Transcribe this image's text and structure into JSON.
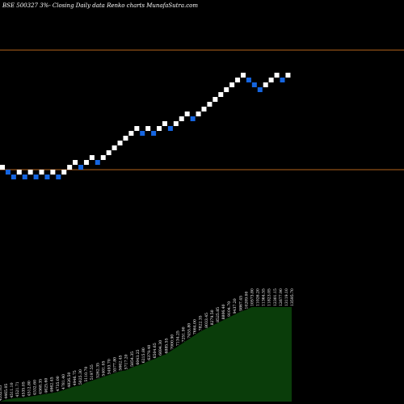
{
  "chart_data": {
    "type": "renko",
    "title": "BSE 500327 3%-  Closing Daily data  Renko  charts MunafaSutra.com",
    "colors": {
      "background": "#000000",
      "up_brick": "#ffffff",
      "down_brick": "#1565e0",
      "reference_line": "#b5651d",
      "volume_fill": "#0a3d0a"
    },
    "reference_levels": [
      "upper",
      "lower"
    ],
    "bricks": [
      {
        "col": 0,
        "step": 0,
        "dir": "up"
      },
      {
        "col": 1,
        "step": -1,
        "dir": "down"
      },
      {
        "col": 2,
        "step": -2,
        "dir": "down"
      },
      {
        "col": 3,
        "step": -1,
        "dir": "up"
      },
      {
        "col": 4,
        "step": -2,
        "dir": "down"
      },
      {
        "col": 5,
        "step": -1,
        "dir": "up"
      },
      {
        "col": 6,
        "step": -2,
        "dir": "down"
      },
      {
        "col": 7,
        "step": -1,
        "dir": "up"
      },
      {
        "col": 8,
        "step": -2,
        "dir": "down"
      },
      {
        "col": 9,
        "step": -1,
        "dir": "up"
      },
      {
        "col": 10,
        "step": -2,
        "dir": "down"
      },
      {
        "col": 11,
        "step": -1,
        "dir": "up"
      },
      {
        "col": 12,
        "step": 0,
        "dir": "up"
      },
      {
        "col": 13,
        "step": 1,
        "dir": "up"
      },
      {
        "col": 14,
        "step": 0,
        "dir": "down"
      },
      {
        "col": 15,
        "step": 1,
        "dir": "up"
      },
      {
        "col": 16,
        "step": 2,
        "dir": "up"
      },
      {
        "col": 17,
        "step": 1,
        "dir": "down"
      },
      {
        "col": 18,
        "step": 2,
        "dir": "up"
      },
      {
        "col": 19,
        "step": 3,
        "dir": "up"
      },
      {
        "col": 20,
        "step": 4,
        "dir": "up"
      },
      {
        "col": 21,
        "step": 5,
        "dir": "up"
      },
      {
        "col": 22,
        "step": 6,
        "dir": "up"
      },
      {
        "col": 23,
        "step": 7,
        "dir": "up"
      },
      {
        "col": 24,
        "step": 8,
        "dir": "up"
      },
      {
        "col": 25,
        "step": 7,
        "dir": "down"
      },
      {
        "col": 26,
        "step": 8,
        "dir": "up"
      },
      {
        "col": 27,
        "step": 7,
        "dir": "down"
      },
      {
        "col": 28,
        "step": 8,
        "dir": "up"
      },
      {
        "col": 29,
        "step": 9,
        "dir": "up"
      },
      {
        "col": 30,
        "step": 8,
        "dir": "down"
      },
      {
        "col": 31,
        "step": 9,
        "dir": "up"
      },
      {
        "col": 32,
        "step": 10,
        "dir": "up"
      },
      {
        "col": 33,
        "step": 11,
        "dir": "up"
      },
      {
        "col": 34,
        "step": 10,
        "dir": "down"
      },
      {
        "col": 35,
        "step": 11,
        "dir": "up"
      },
      {
        "col": 36,
        "step": 12,
        "dir": "up"
      },
      {
        "col": 37,
        "step": 13,
        "dir": "up"
      },
      {
        "col": 38,
        "step": 14,
        "dir": "up"
      },
      {
        "col": 39,
        "step": 15,
        "dir": "up"
      },
      {
        "col": 40,
        "step": 16,
        "dir": "up"
      },
      {
        "col": 41,
        "step": 17,
        "dir": "up"
      },
      {
        "col": 42,
        "step": 18,
        "dir": "up"
      },
      {
        "col": 43,
        "step": 19,
        "dir": "up"
      },
      {
        "col": 44,
        "step": 18,
        "dir": "down"
      },
      {
        "col": 45,
        "step": 17,
        "dir": "down"
      },
      {
        "col": 46,
        "step": 16,
        "dir": "down"
      },
      {
        "col": 47,
        "step": 17,
        "dir": "up"
      },
      {
        "col": 48,
        "step": 18,
        "dir": "up"
      },
      {
        "col": 49,
        "step": 19,
        "dir": "up"
      },
      {
        "col": 50,
        "step": 18,
        "dir": "down"
      },
      {
        "col": 51,
        "step": 19,
        "dir": "up"
      }
    ],
    "volume_levels": [
      0.0,
      0.02,
      0.03,
      0.04,
      0.04,
      0.05,
      0.06,
      0.07,
      0.08,
      0.09,
      0.1,
      0.12,
      0.14,
      0.16,
      0.17,
      0.2,
      0.22,
      0.24,
      0.26,
      0.28,
      0.3,
      0.32,
      0.33,
      0.36,
      0.38,
      0.4,
      0.43,
      0.45,
      0.48,
      0.5,
      0.54,
      0.58,
      0.62,
      0.66,
      0.7,
      0.74,
      0.77,
      0.8,
      0.83,
      0.86,
      0.89,
      0.92,
      0.95,
      0.97,
      1.0,
      1.0,
      1.0,
      1.0,
      1.0,
      1.0,
      1.0,
      1.0
    ],
    "volume_labels": [
      "4532.05",
      "4465.05",
      "4511.10",
      "4521.71",
      "4535.05",
      "4512.80",
      "4532.60",
      "4568.35",
      "4625.60",
      "4662.45",
      "4735.00",
      "4781.40",
      "4826.50",
      "4946.75",
      "5025.30",
      "5110.70",
      "5197.55",
      "5262.35",
      "5401.05",
      "5493.70",
      "5577.80",
      "5662.45",
      "5717.20",
      "5854.35",
      "6043.25",
      "6215.80",
      "6379.40",
      "6504.65",
      "6694.30",
      "6885.55",
      "7000.90",
      "7134.25",
      "7251.90",
      "7455.80",
      "7664.00",
      "7822.35",
      "8033.45",
      "8279.50",
      "8525.85",
      "8806.40",
      "9104.70",
      "9437.20",
      "9867.45",
      "10209.00",
      "10573.80",
      "11026.20",
      "11364.55",
      "11823.05",
      "12301.15",
      "12677.90",
      "13119.10",
      "13595.70"
    ]
  }
}
